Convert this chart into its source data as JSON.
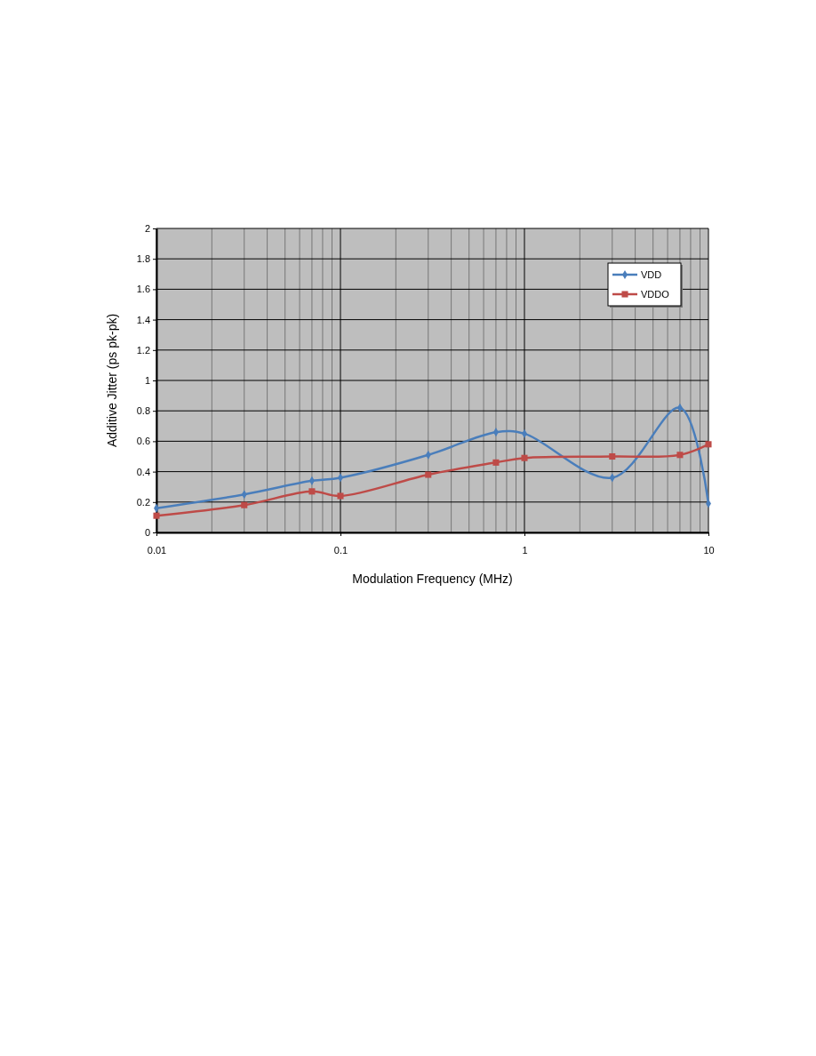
{
  "chart_data": {
    "type": "line",
    "xlabel": "Modulation Frequency (MHz)",
    "ylabel": "Additive Jitter (ps pk-pk)",
    "log": "x",
    "x": [
      0.01,
      0.03,
      0.07,
      0.1,
      0.3,
      0.7,
      1,
      3,
      7,
      10
    ],
    "series": [
      {
        "name": "VDD",
        "color": "#4a7ebb",
        "marker": "diamond",
        "values": [
          0.16,
          0.25,
          0.34,
          0.36,
          0.51,
          0.66,
          0.65,
          0.36,
          0.82,
          0.19
        ]
      },
      {
        "name": "VDDO",
        "color": "#be4b48",
        "marker": "square",
        "values": [
          0.11,
          0.18,
          0.27,
          0.24,
          0.38,
          0.46,
          0.49,
          0.5,
          0.51,
          0.58
        ]
      }
    ],
    "xlim": [
      0.01,
      10
    ],
    "xticks": [
      0.01,
      {
        "value": 0.02,
        "label": null
      },
      {
        "value": 0.03,
        "label": null
      },
      {
        "value": 0.04,
        "label": null
      },
      {
        "value": 0.05,
        "label": null
      },
      {
        "value": 0.06,
        "label": null
      },
      {
        "value": 0.07,
        "label": null
      },
      {
        "value": 0.08,
        "label": null
      },
      {
        "value": 0.09,
        "label": null
      },
      0.1,
      {
        "value": 0.2,
        "label": null
      },
      {
        "value": 0.3,
        "label": null
      },
      {
        "value": 0.4,
        "label": null
      },
      {
        "value": 0.5,
        "label": null
      },
      {
        "value": 0.6,
        "label": null
      },
      {
        "value": 0.7,
        "label": null
      },
      {
        "value": 0.8,
        "label": null
      },
      {
        "value": 0.9,
        "label": null
      },
      1,
      {
        "value": 2,
        "label": null
      },
      {
        "value": 3,
        "label": null
      },
      {
        "value": 4,
        "label": null
      },
      {
        "value": 5,
        "label": null
      },
      {
        "value": 6,
        "label": null
      },
      {
        "value": 7,
        "label": null
      },
      {
        "value": 8,
        "label": null
      },
      {
        "value": 9,
        "label": null
      },
      10
    ],
    "ylim": [
      0,
      2
    ],
    "yticks": [
      0,
      0.2,
      0.4,
      0.6,
      0.8,
      1,
      1.2,
      1.4,
      1.6,
      1.8,
      2
    ],
    "grid": true,
    "legend": "top right",
    "line_style": "solid"
  }
}
